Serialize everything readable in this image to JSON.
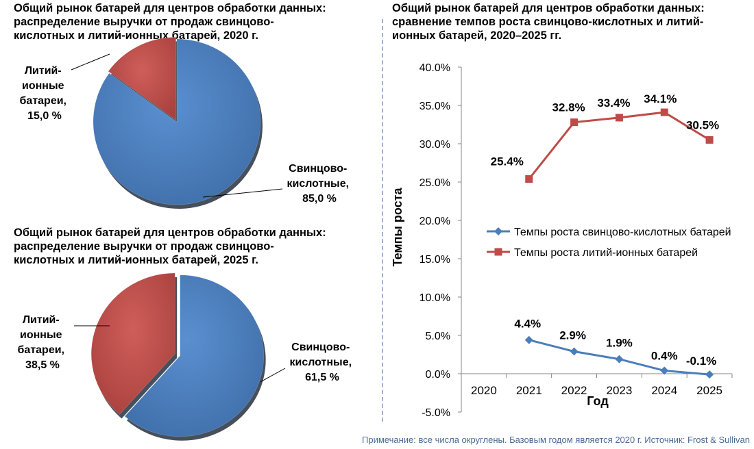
{
  "pie_2020": {
    "title_lines": [
      "Общий рынок батарей для центров обработки данных:",
      "распределение выручки от продаж свинцово-",
      "кислотных и литий-ионных батарей, 2020 г."
    ],
    "slices": [
      {
        "label_lines": [
          "Свинцово-",
          "кислотные,",
          "85,0 %"
        ],
        "value": 85.0
      },
      {
        "label_lines": [
          "Литий-",
          "ионные",
          "батареи,",
          "15,0 %"
        ],
        "value": 15.0
      }
    ]
  },
  "pie_2025": {
    "title_lines": [
      "Общий рынок батарей для центров обработки данных:",
      "распределение выручки от продаж свинцово-",
      "кислотных и литий-ионных батарей, 2025 г."
    ],
    "slices": [
      {
        "label_lines": [
          "Свинцово-",
          "кислотные,",
          "61,5 %"
        ],
        "value": 61.5
      },
      {
        "label_lines": [
          "Литий-",
          "ионные",
          "батареи,",
          "38,5 %"
        ],
        "value": 38.5
      }
    ]
  },
  "line_chart": {
    "title_lines": [
      "Общий рынок батарей для центров обработки данных:",
      "сравнение темпов роста свинцово-кислотных и литий-",
      "ионных батарей, 2020–2025 гг."
    ],
    "xlabel": "Год",
    "ylabel": "Темпы роста",
    "y_ticks": [
      "40.0%",
      "35.0%",
      "30.0%",
      "25.0%",
      "20.0%",
      "15.0%",
      "10.0%",
      "5.0%",
      "0.0%",
      "-5.0%"
    ]
  },
  "chart_data": [
    {
      "type": "pie",
      "title": "Общий рынок батарей для центров обработки данных: распределение выручки от продаж свинцово-кислотных и литий-ионных батарей, 2020 г.",
      "labels": [
        "Свинцово-кислотные",
        "Литий-ионные батареи"
      ],
      "values": [
        85.0,
        15.0
      ],
      "colors": [
        "#4f81bd",
        "#c0504d"
      ]
    },
    {
      "type": "pie",
      "title": "Общий рынок батарей для центров обработки данных: распределение выручки от продаж свинцово-кислотных и литий-ионных батарей, 2025 г.",
      "labels": [
        "Свинцово-кислотные",
        "Литий-ионные батареи"
      ],
      "values": [
        61.5,
        38.5
      ],
      "colors": [
        "#4f81bd",
        "#c0504d"
      ]
    },
    {
      "type": "line",
      "title": "Общий рынок батарей для центров обработки данных: сравнение темпов роста свинцово-кислотных и литий-ионных батарей, 2020–2025 гг.",
      "xlabel": "Год",
      "ylabel": "Темпы роста",
      "categories": [
        "2020",
        "2021",
        "2022",
        "2023",
        "2024",
        "2025"
      ],
      "ylim": [
        -5,
        40
      ],
      "grid": false,
      "legend": "right",
      "series": [
        {
          "name": "Темпы роста свинцово-кислотных батарей",
          "color": "#4a7ebb",
          "marker": "diamond",
          "values": [
            null,
            4.4,
            2.9,
            1.9,
            0.4,
            -0.1
          ],
          "labels": [
            "",
            "4.4%",
            "2.9%",
            "1.9%",
            "0.4%",
            "-0.1%"
          ]
        },
        {
          "name": "Темпы роста литий-ионных батарей",
          "color": "#be4b48",
          "marker": "square",
          "values": [
            null,
            25.4,
            32.8,
            33.4,
            34.1,
            30.5
          ],
          "labels": [
            "",
            "25.4%",
            "32.8%",
            "33.4%",
            "34.1%",
            "30.5%"
          ]
        }
      ]
    }
  ],
  "footer": {
    "note": "Примечание: все числа округлены. Базовым годом является 2020 г. Источник: Frost & Sullivan"
  }
}
